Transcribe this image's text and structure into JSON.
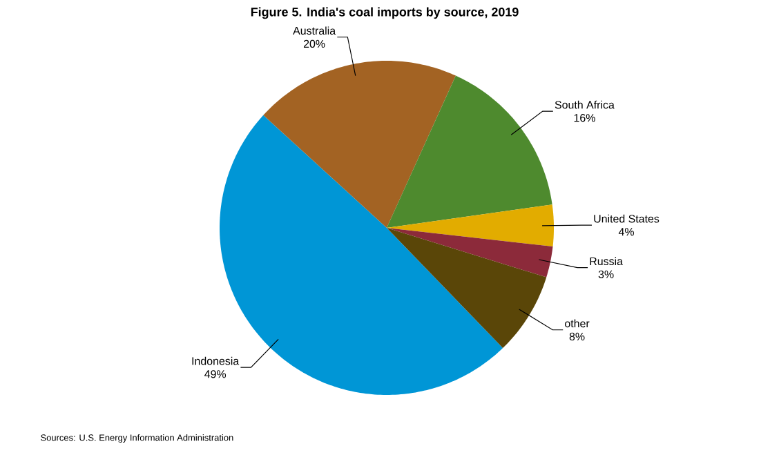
{
  "chart_data": {
    "type": "pie",
    "title": "Figure 5. India's coal imports by source, 2019",
    "categories": [
      "Indonesia",
      "Australia",
      "South Africa",
      "United States",
      "Russia",
      "other"
    ],
    "values": [
      49,
      20,
      16,
      4,
      3,
      8
    ],
    "colors": [
      "#0096d6",
      "#a36323",
      "#4e8a2e",
      "#e2ac00",
      "#8c2a3a",
      "#5a4608"
    ],
    "value_labels": [
      "49%",
      "20%",
      "16%",
      "4%",
      "3%",
      "8%"
    ],
    "annotations": [
      "Sources: U.S. Energy Information Administration"
    ]
  }
}
